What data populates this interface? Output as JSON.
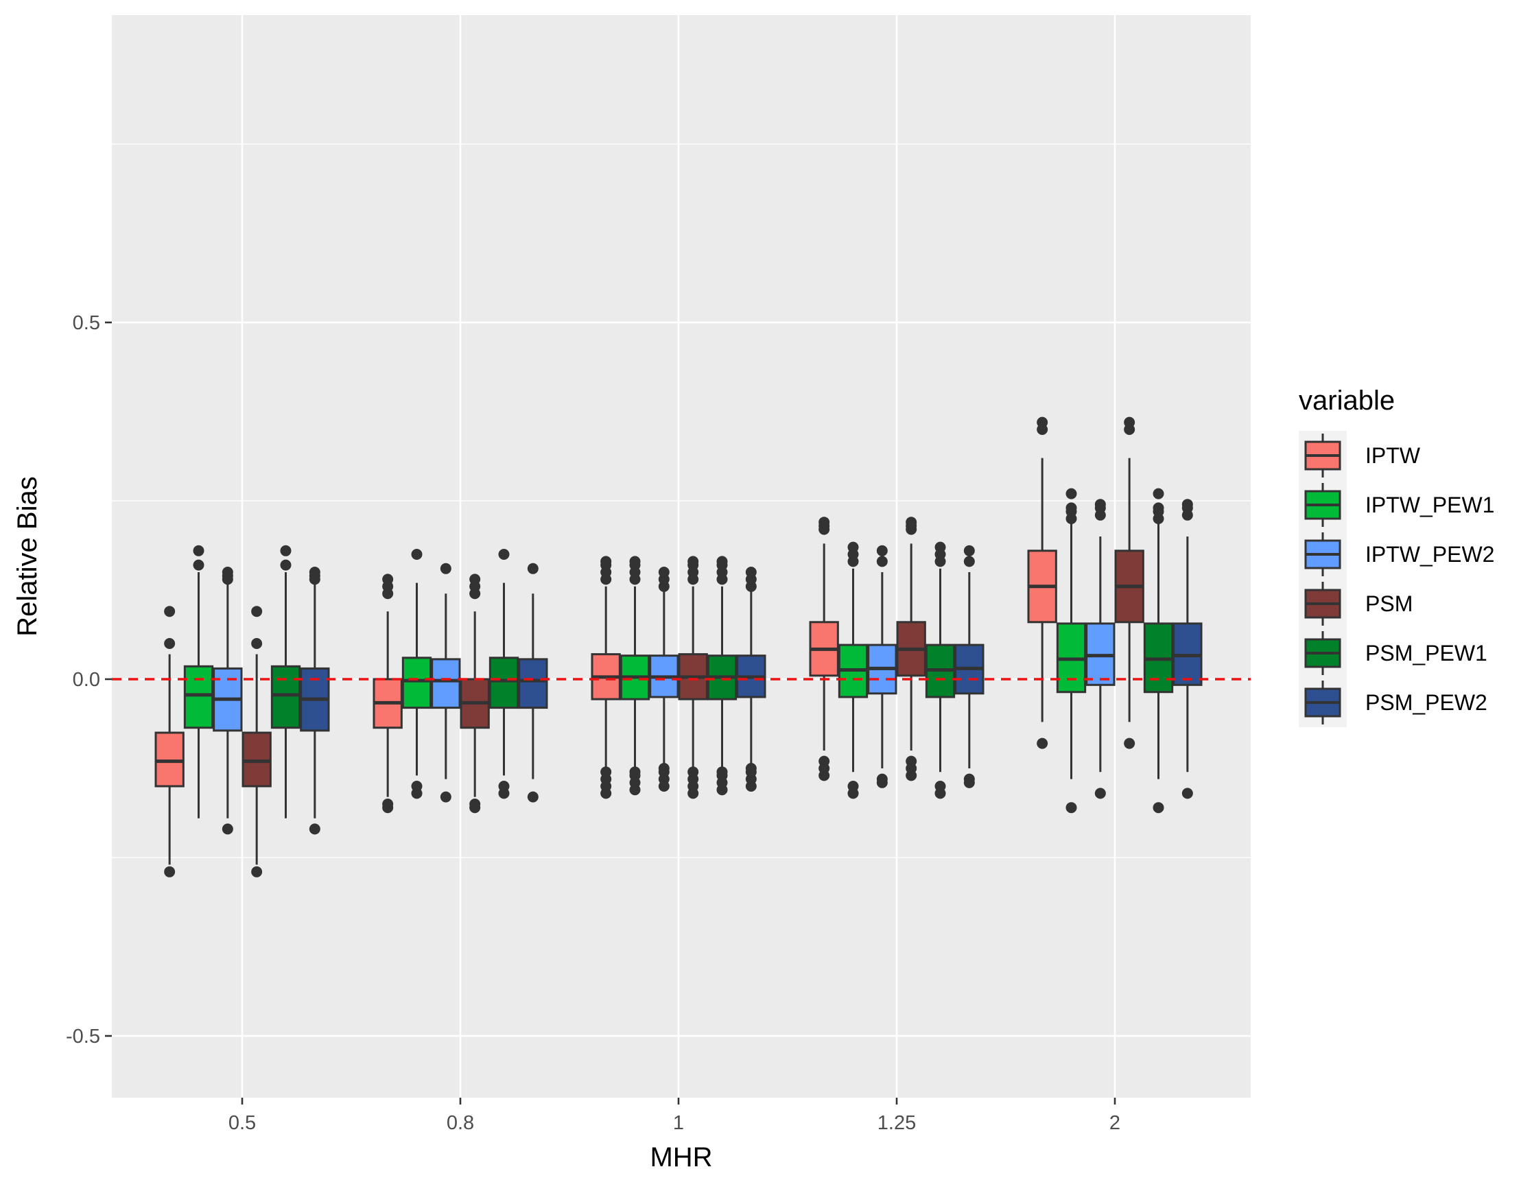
{
  "chart_data": {
    "type": "boxplot",
    "xlabel": "MHR",
    "ylabel": "Relative Bias",
    "categories": [
      "0.5",
      "0.8",
      "1",
      "1.25",
      "2"
    ],
    "ylim": [
      -0.58,
      0.93
    ],
    "yticks": [
      -0.5,
      0.0,
      0.5
    ],
    "ytick_labels": [
      "-0.5",
      "0.0",
      "0.5"
    ],
    "grid": true,
    "reference_line": {
      "y": 0.0,
      "color": "#ee1111",
      "style": "dashed"
    },
    "legend": {
      "title": "variable",
      "position": "right"
    },
    "series": [
      {
        "name": "IPTW",
        "color": "#f8766d",
        "boxes": [
          {
            "min": -0.26,
            "q1": -0.15,
            "median": -0.115,
            "q3": -0.075,
            "max": 0.035,
            "outliers": [
              -0.27,
              0.05,
              0.095
            ]
          },
          {
            "min": -0.165,
            "q1": -0.068,
            "median": -0.033,
            "q3": 0.0,
            "max": 0.095,
            "outliers": [
              -0.18,
              -0.175,
              0.12,
              0.13,
              0.14
            ]
          },
          {
            "min": -0.125,
            "q1": -0.028,
            "median": 0.003,
            "q3": 0.035,
            "max": 0.13,
            "outliers": [
              -0.16,
              -0.15,
              -0.14,
              -0.13,
              0.14,
              0.15,
              0.16,
              0.165
            ]
          },
          {
            "min": -0.1,
            "q1": 0.005,
            "median": 0.042,
            "q3": 0.08,
            "max": 0.19,
            "outliers": [
              -0.135,
              -0.125,
              -0.115,
              0.21,
              0.215,
              0.22
            ]
          },
          {
            "min": -0.06,
            "q1": 0.08,
            "median": 0.13,
            "q3": 0.18,
            "max": 0.31,
            "outliers": [
              -0.09,
              0.35,
              0.36
            ]
          }
        ]
      },
      {
        "name": "IPTW_PEW1",
        "color": "#00ba38",
        "boxes": [
          {
            "min": -0.195,
            "q1": -0.068,
            "median": -0.022,
            "q3": 0.018,
            "max": 0.15,
            "outliers": [
              0.16,
              0.18
            ]
          },
          {
            "min": -0.135,
            "q1": -0.04,
            "median": -0.002,
            "q3": 0.03,
            "max": 0.135,
            "outliers": [
              -0.16,
              -0.15,
              0.175
            ]
          },
          {
            "min": -0.125,
            "q1": -0.028,
            "median": 0.003,
            "q3": 0.033,
            "max": 0.13,
            "outliers": [
              -0.155,
              -0.145,
              -0.135,
              -0.13,
              0.14,
              0.15,
              0.16,
              0.165
            ]
          },
          {
            "min": -0.13,
            "q1": -0.025,
            "median": 0.013,
            "q3": 0.048,
            "max": 0.155,
            "outliers": [
              -0.16,
              -0.15,
              0.165,
              0.175,
              0.185
            ]
          },
          {
            "min": -0.14,
            "q1": -0.018,
            "median": 0.028,
            "q3": 0.078,
            "max": 0.22,
            "outliers": [
              -0.18,
              0.225,
              0.235,
              0.24,
              0.26
            ]
          }
        ]
      },
      {
        "name": "IPTW_PEW2",
        "color": "#619cff",
        "boxes": [
          {
            "min": -0.195,
            "q1": -0.072,
            "median": -0.028,
            "q3": 0.015,
            "max": 0.135,
            "outliers": [
              -0.21,
              0.14,
              0.145,
              0.15
            ]
          },
          {
            "min": -0.14,
            "q1": -0.04,
            "median": -0.002,
            "q3": 0.028,
            "max": 0.12,
            "outliers": [
              -0.165,
              0.155
            ]
          },
          {
            "min": -0.125,
            "q1": -0.025,
            "median": 0.003,
            "q3": 0.033,
            "max": 0.125,
            "outliers": [
              -0.15,
              -0.14,
              -0.13,
              -0.125,
              0.13,
              0.14,
              0.15
            ]
          },
          {
            "min": -0.125,
            "q1": -0.02,
            "median": 0.015,
            "q3": 0.048,
            "max": 0.15,
            "outliers": [
              -0.145,
              -0.14,
              0.165,
              0.18
            ]
          },
          {
            "min": -0.13,
            "q1": -0.008,
            "median": 0.033,
            "q3": 0.078,
            "max": 0.2,
            "outliers": [
              -0.16,
              0.23,
              0.24,
              0.245
            ]
          }
        ]
      },
      {
        "name": "PSM",
        "color": "#7f3b38",
        "boxes": [
          {
            "min": -0.26,
            "q1": -0.15,
            "median": -0.115,
            "q3": -0.075,
            "max": 0.035,
            "outliers": [
              -0.27,
              0.05,
              0.095
            ]
          },
          {
            "min": -0.165,
            "q1": -0.068,
            "median": -0.033,
            "q3": 0.0,
            "max": 0.095,
            "outliers": [
              -0.18,
              -0.175,
              0.12,
              0.13,
              0.14
            ]
          },
          {
            "min": -0.125,
            "q1": -0.028,
            "median": 0.003,
            "q3": 0.035,
            "max": 0.13,
            "outliers": [
              -0.16,
              -0.15,
              -0.14,
              -0.13,
              0.14,
              0.15,
              0.16,
              0.165
            ]
          },
          {
            "min": -0.1,
            "q1": 0.005,
            "median": 0.042,
            "q3": 0.08,
            "max": 0.19,
            "outliers": [
              -0.135,
              -0.125,
              -0.115,
              0.21,
              0.215,
              0.22
            ]
          },
          {
            "min": -0.06,
            "q1": 0.08,
            "median": 0.13,
            "q3": 0.18,
            "max": 0.31,
            "outliers": [
              -0.09,
              0.35,
              0.36
            ]
          }
        ]
      },
      {
        "name": "PSM_PEW1",
        "color": "#00812a",
        "boxes": [
          {
            "min": -0.195,
            "q1": -0.068,
            "median": -0.022,
            "q3": 0.018,
            "max": 0.15,
            "outliers": [
              0.16,
              0.18
            ]
          },
          {
            "min": -0.135,
            "q1": -0.04,
            "median": -0.002,
            "q3": 0.03,
            "max": 0.135,
            "outliers": [
              -0.16,
              -0.15,
              0.175
            ]
          },
          {
            "min": -0.125,
            "q1": -0.028,
            "median": 0.003,
            "q3": 0.033,
            "max": 0.13,
            "outliers": [
              -0.155,
              -0.145,
              -0.135,
              -0.13,
              0.14,
              0.15,
              0.16,
              0.165
            ]
          },
          {
            "min": -0.13,
            "q1": -0.025,
            "median": 0.013,
            "q3": 0.048,
            "max": 0.155,
            "outliers": [
              -0.16,
              -0.15,
              0.165,
              0.175,
              0.185
            ]
          },
          {
            "min": -0.14,
            "q1": -0.018,
            "median": 0.028,
            "q3": 0.078,
            "max": 0.22,
            "outliers": [
              -0.18,
              0.225,
              0.235,
              0.24,
              0.26
            ]
          }
        ]
      },
      {
        "name": "PSM_PEW2",
        "color": "#2e5090",
        "boxes": [
          {
            "min": -0.195,
            "q1": -0.072,
            "median": -0.028,
            "q3": 0.015,
            "max": 0.135,
            "outliers": [
              -0.21,
              0.14,
              0.145,
              0.15
            ]
          },
          {
            "min": -0.14,
            "q1": -0.04,
            "median": -0.002,
            "q3": 0.028,
            "max": 0.12,
            "outliers": [
              -0.165,
              0.155
            ]
          },
          {
            "min": -0.125,
            "q1": -0.025,
            "median": 0.003,
            "q3": 0.033,
            "max": 0.125,
            "outliers": [
              -0.15,
              -0.14,
              -0.13,
              -0.125,
              0.13,
              0.14,
              0.15
            ]
          },
          {
            "min": -0.125,
            "q1": -0.02,
            "median": 0.015,
            "q3": 0.048,
            "max": 0.15,
            "outliers": [
              -0.145,
              -0.14,
              0.165,
              0.18
            ]
          },
          {
            "min": -0.13,
            "q1": -0.008,
            "median": 0.033,
            "q3": 0.078,
            "max": 0.2,
            "outliers": [
              -0.16,
              0.23,
              0.24,
              0.245
            ]
          }
        ]
      }
    ]
  }
}
